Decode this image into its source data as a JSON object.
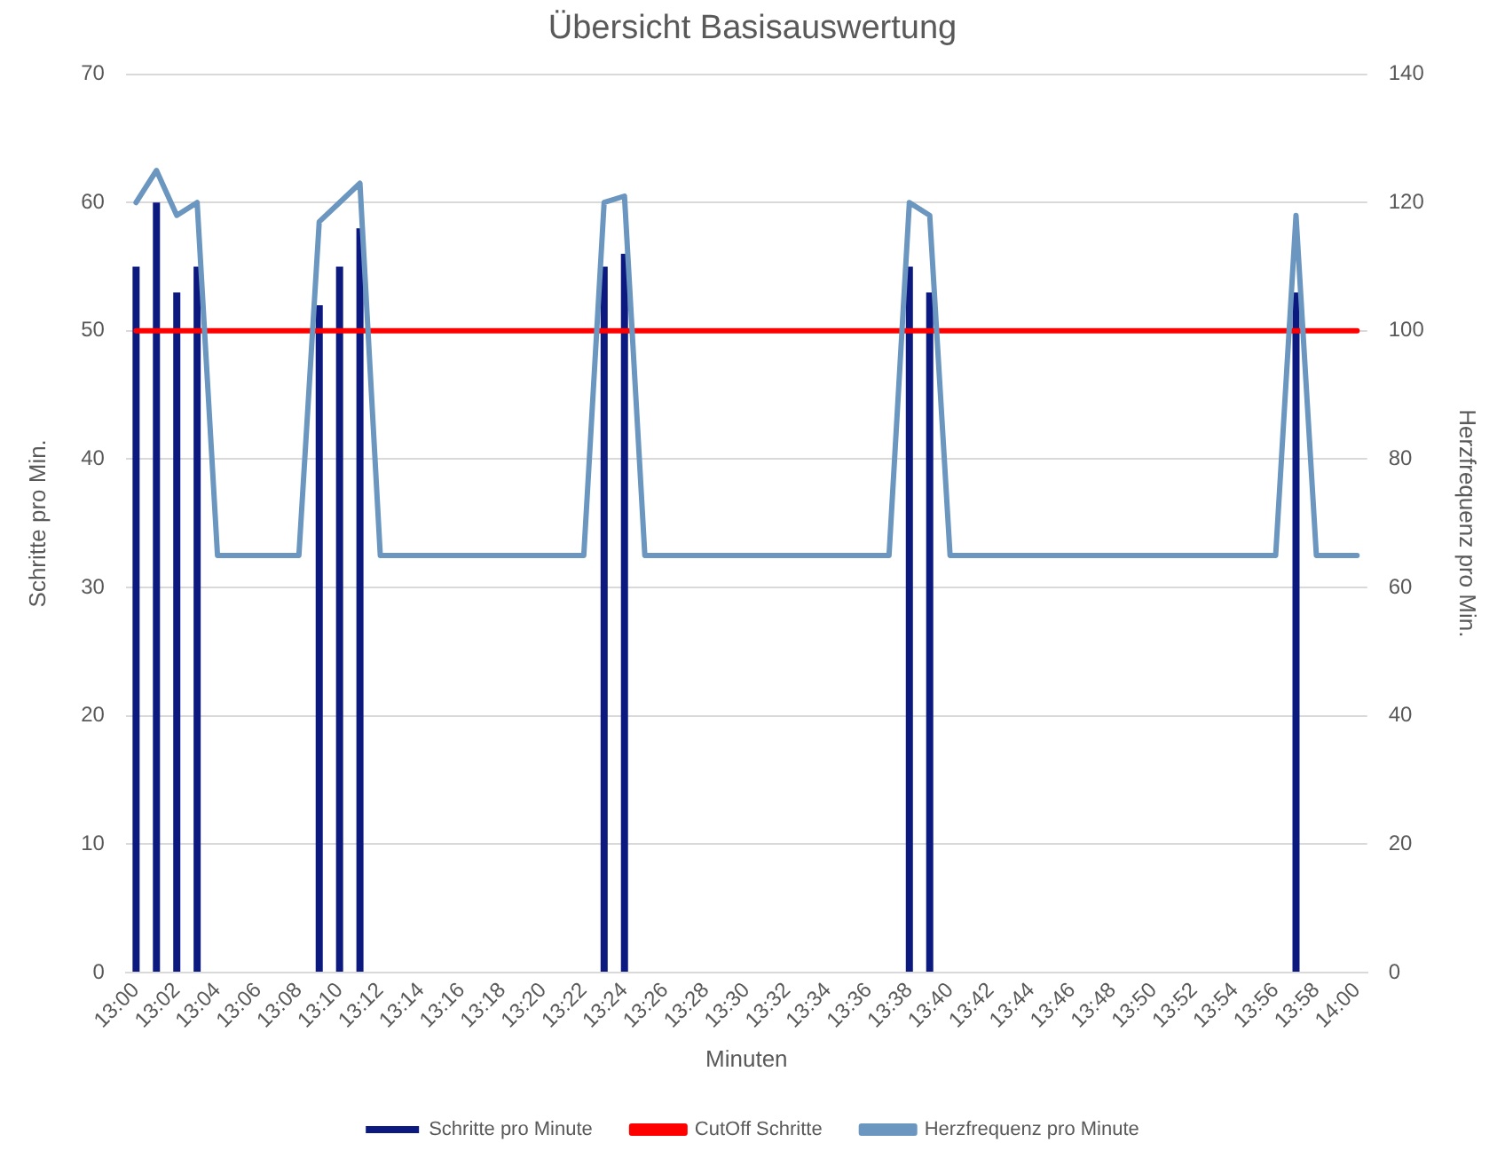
{
  "chart_data": {
    "type": "bar",
    "title": "Übersicht Basisauswertung",
    "xlabel": "Minuten",
    "ylabel": "Schritte pro Min.",
    "y2label": "Herzfrequenz pro Min.",
    "categories": [
      "13:00",
      null,
      "13:02",
      null,
      "13:04",
      null,
      "13:06",
      null,
      "13:08",
      null,
      "13:10",
      null,
      "13:12",
      null,
      "13:14",
      null,
      "13:16",
      null,
      "13:18",
      null,
      "13:20",
      null,
      "13:22",
      null,
      "13:24",
      null,
      "13:26",
      null,
      "13:28",
      null,
      "13:30",
      null,
      "13:32",
      null,
      "13:34",
      null,
      "13:36",
      null,
      "13:38",
      null,
      "13:40",
      null,
      "13:42",
      null,
      "13:44",
      null,
      "13:46",
      null,
      "13:48",
      null,
      "13:50",
      null,
      "13:52",
      null,
      "13:54",
      null,
      "13:56",
      null,
      "13:58",
      null,
      "14:00"
    ],
    "series": [
      {
        "name": "Schritte pro Minute",
        "color": "#0c1a80",
        "values": [
          55,
          60,
          53,
          55,
          null,
          null,
          null,
          null,
          null,
          52,
          55,
          58,
          null,
          null,
          null,
          null,
          null,
          null,
          null,
          null,
          null,
          null,
          null,
          55,
          56,
          null,
          null,
          null,
          null,
          null,
          null,
          null,
          null,
          null,
          null,
          null,
          null,
          null,
          55,
          53,
          null,
          null,
          null,
          null,
          null,
          null,
          null,
          null,
          null,
          null,
          null,
          null,
          null,
          null,
          null,
          null,
          null,
          53,
          null,
          null,
          null
        ]
      },
      {
        "name": "CutOff Schritte",
        "type": "line",
        "color": "#ff0000",
        "values": [
          50,
          50,
          50,
          50,
          50,
          50,
          50,
          50,
          50,
          50,
          50,
          50,
          50,
          50,
          50,
          50,
          50,
          50,
          50,
          50,
          50,
          50,
          50,
          50,
          50,
          50,
          50,
          50,
          50,
          50,
          50,
          50,
          50,
          50,
          50,
          50,
          50,
          50,
          50,
          50,
          50,
          50,
          50,
          50,
          50,
          50,
          50,
          50,
          50,
          50,
          50,
          50,
          50,
          50,
          50,
          50,
          50,
          50,
          50,
          50,
          50
        ]
      },
      {
        "name": "Herzfrequenz pro Minute",
        "type": "line",
        "axis": "y2",
        "color": "#6b96c0",
        "values": [
          120,
          125,
          118,
          120,
          65,
          65,
          65,
          65,
          65,
          117,
          120,
          123,
          65,
          65,
          65,
          65,
          65,
          65,
          65,
          65,
          65,
          65,
          65,
          120,
          121,
          65,
          65,
          65,
          65,
          65,
          65,
          65,
          65,
          65,
          65,
          65,
          65,
          65,
          120,
          118,
          65,
          65,
          65,
          65,
          65,
          65,
          65,
          65,
          65,
          65,
          65,
          65,
          65,
          65,
          65,
          65,
          65,
          118,
          65,
          65,
          65
        ]
      }
    ],
    "ylim": [
      0,
      70
    ],
    "yticks": [
      0,
      10,
      20,
      30,
      40,
      50,
      60,
      70
    ],
    "y2lim": [
      0,
      140
    ],
    "y2ticks": [
      0,
      20,
      40,
      60,
      80,
      100,
      120,
      140
    ],
    "grid": "y",
    "legend": "bottom",
    "marker": "none",
    "line_style": "solid"
  }
}
